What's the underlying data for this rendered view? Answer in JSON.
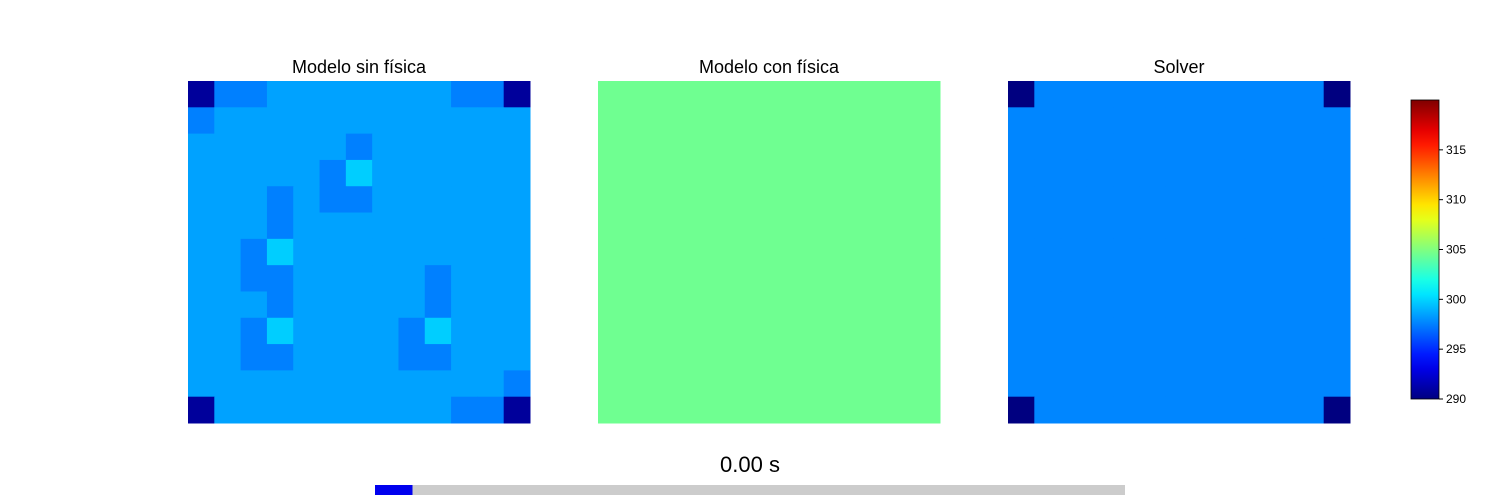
{
  "chart_data": [
    {
      "type": "heatmap",
      "title": "Modelo sin física",
      "colormap": "jet",
      "vmin": 290,
      "vmax": 320,
      "grid": [
        [
          290.8,
          297.5,
          297.5,
          298.5,
          298.5,
          298.5,
          298.5,
          298.5,
          298.5,
          298.5,
          297.5,
          297.5,
          290.8
        ],
        [
          297.5,
          298.5,
          298.5,
          298.5,
          298.5,
          298.5,
          298.5,
          298.5,
          298.5,
          298.5,
          298.5,
          298.5,
          298.5
        ],
        [
          298.5,
          298.5,
          298.5,
          298.5,
          298.5,
          298.5,
          297.5,
          298.5,
          298.5,
          298.5,
          298.5,
          298.5,
          298.5
        ],
        [
          298.5,
          298.5,
          298.5,
          298.5,
          298.5,
          297.5,
          299.8,
          298.5,
          298.5,
          298.5,
          298.5,
          298.5,
          298.5
        ],
        [
          298.5,
          298.5,
          298.5,
          297.5,
          298.5,
          297.5,
          297.5,
          298.5,
          298.5,
          298.5,
          298.5,
          298.5,
          298.5
        ],
        [
          298.5,
          298.5,
          298.5,
          297.5,
          298.5,
          298.5,
          298.5,
          298.5,
          298.5,
          298.5,
          298.5,
          298.5,
          298.5
        ],
        [
          298.5,
          298.5,
          297.5,
          299.8,
          298.5,
          298.5,
          298.5,
          298.5,
          298.5,
          298.5,
          298.5,
          298.5,
          298.5
        ],
        [
          298.5,
          298.5,
          297.5,
          297.5,
          298.5,
          298.5,
          298.5,
          298.5,
          298.5,
          297.5,
          298.5,
          298.5,
          298.5
        ],
        [
          298.5,
          298.5,
          298.5,
          297.5,
          298.5,
          298.5,
          298.5,
          298.5,
          298.5,
          297.5,
          298.5,
          298.5,
          298.5
        ],
        [
          298.5,
          298.5,
          297.5,
          299.8,
          298.5,
          298.5,
          298.5,
          298.5,
          297.5,
          299.8,
          298.5,
          298.5,
          298.5
        ],
        [
          298.5,
          298.5,
          297.5,
          297.5,
          298.5,
          298.5,
          298.5,
          298.5,
          297.5,
          297.5,
          298.5,
          298.5,
          298.5
        ],
        [
          298.5,
          298.5,
          298.5,
          298.5,
          298.5,
          298.5,
          298.5,
          298.5,
          298.5,
          298.5,
          298.5,
          298.5,
          297.5
        ],
        [
          290.8,
          298.5,
          298.5,
          298.5,
          298.5,
          298.5,
          298.5,
          298.5,
          298.5,
          298.5,
          297.5,
          297.5,
          290.8
        ]
      ]
    },
    {
      "type": "heatmap",
      "title": "Modelo con física",
      "colormap": "jet",
      "vmin": 290,
      "vmax": 320,
      "grid": [
        [
          304.5
        ]
      ]
    },
    {
      "type": "heatmap",
      "title": "Solver",
      "colormap": "jet",
      "vmin": 290,
      "vmax": 320,
      "grid": [
        [
          290.0,
          297.7,
          297.7,
          297.7,
          297.7,
          297.7,
          297.7,
          297.7,
          297.7,
          297.7,
          297.7,
          297.7,
          290.0
        ],
        [
          297.7,
          297.7,
          297.7,
          297.7,
          297.7,
          297.7,
          297.7,
          297.7,
          297.7,
          297.7,
          297.7,
          297.7,
          297.7
        ],
        [
          297.7,
          297.7,
          297.7,
          297.7,
          297.7,
          297.7,
          297.7,
          297.7,
          297.7,
          297.7,
          297.7,
          297.7,
          297.7
        ],
        [
          297.7,
          297.7,
          297.7,
          297.7,
          297.7,
          297.7,
          297.7,
          297.7,
          297.7,
          297.7,
          297.7,
          297.7,
          297.7
        ],
        [
          297.7,
          297.7,
          297.7,
          297.7,
          297.7,
          297.7,
          297.7,
          297.7,
          297.7,
          297.7,
          297.7,
          297.7,
          297.7
        ],
        [
          297.7,
          297.7,
          297.7,
          297.7,
          297.7,
          297.7,
          297.7,
          297.7,
          297.7,
          297.7,
          297.7,
          297.7,
          297.7
        ],
        [
          297.7,
          297.7,
          297.7,
          297.7,
          297.7,
          297.7,
          297.7,
          297.7,
          297.7,
          297.7,
          297.7,
          297.7,
          297.7
        ],
        [
          297.7,
          297.7,
          297.7,
          297.7,
          297.7,
          297.7,
          297.7,
          297.7,
          297.7,
          297.7,
          297.7,
          297.7,
          297.7
        ],
        [
          297.7,
          297.7,
          297.7,
          297.7,
          297.7,
          297.7,
          297.7,
          297.7,
          297.7,
          297.7,
          297.7,
          297.7,
          297.7
        ],
        [
          297.7,
          297.7,
          297.7,
          297.7,
          297.7,
          297.7,
          297.7,
          297.7,
          297.7,
          297.7,
          297.7,
          297.7,
          297.7
        ],
        [
          297.7,
          297.7,
          297.7,
          297.7,
          297.7,
          297.7,
          297.7,
          297.7,
          297.7,
          297.7,
          297.7,
          297.7,
          297.7
        ],
        [
          297.7,
          297.7,
          297.7,
          297.7,
          297.7,
          297.7,
          297.7,
          297.7,
          297.7,
          297.7,
          297.7,
          297.7,
          297.7
        ],
        [
          290.0,
          297.7,
          297.7,
          297.7,
          297.7,
          297.7,
          297.7,
          297.7,
          297.7,
          297.7,
          297.7,
          297.7,
          290.0
        ]
      ]
    }
  ],
  "colorbar": {
    "vmin": 290,
    "vmax": 320,
    "ticks": [
      290,
      295,
      300,
      305,
      310,
      315
    ],
    "tick_labels": [
      "290",
      "295",
      "300",
      "305",
      "310",
      "315"
    ],
    "colormap": "jet"
  },
  "time_label": "0.00 s",
  "progress": {
    "fraction": 0.05,
    "fill_color": "#0000ee",
    "track_color": "#cccccc"
  }
}
